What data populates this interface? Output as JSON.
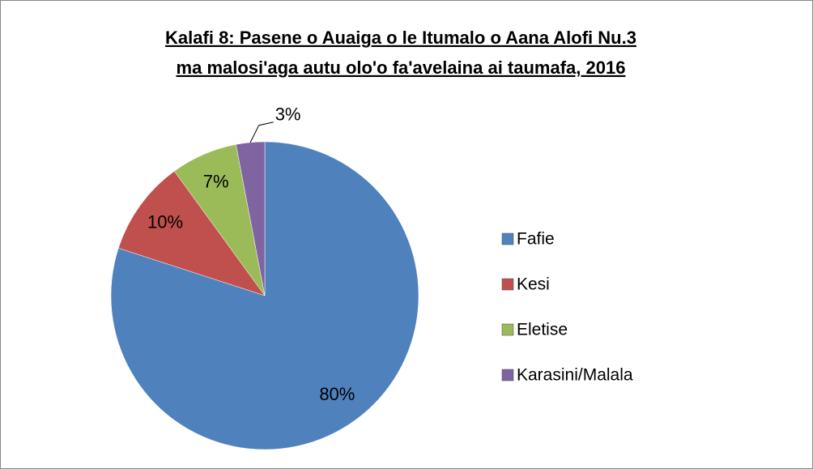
{
  "chart_data": {
    "type": "pie",
    "title": [
      "Kalafi 8: Pasene o Auaiga o le Itumalo o Aana Alofi Nu.3",
      "ma malosi'aga autu olo'o fa'avelaina ai taumafa, 2016"
    ],
    "categories": [
      "Fafie",
      "Kesi",
      "Eletise",
      "Karasini/Malala"
    ],
    "values": [
      80,
      10,
      7,
      3
    ],
    "value_labels": [
      "80%",
      "10%",
      "7%",
      "3%"
    ],
    "colors": [
      "#4f81bd",
      "#c0504d",
      "#9bbb59",
      "#8064a2"
    ],
    "legend": "right"
  }
}
